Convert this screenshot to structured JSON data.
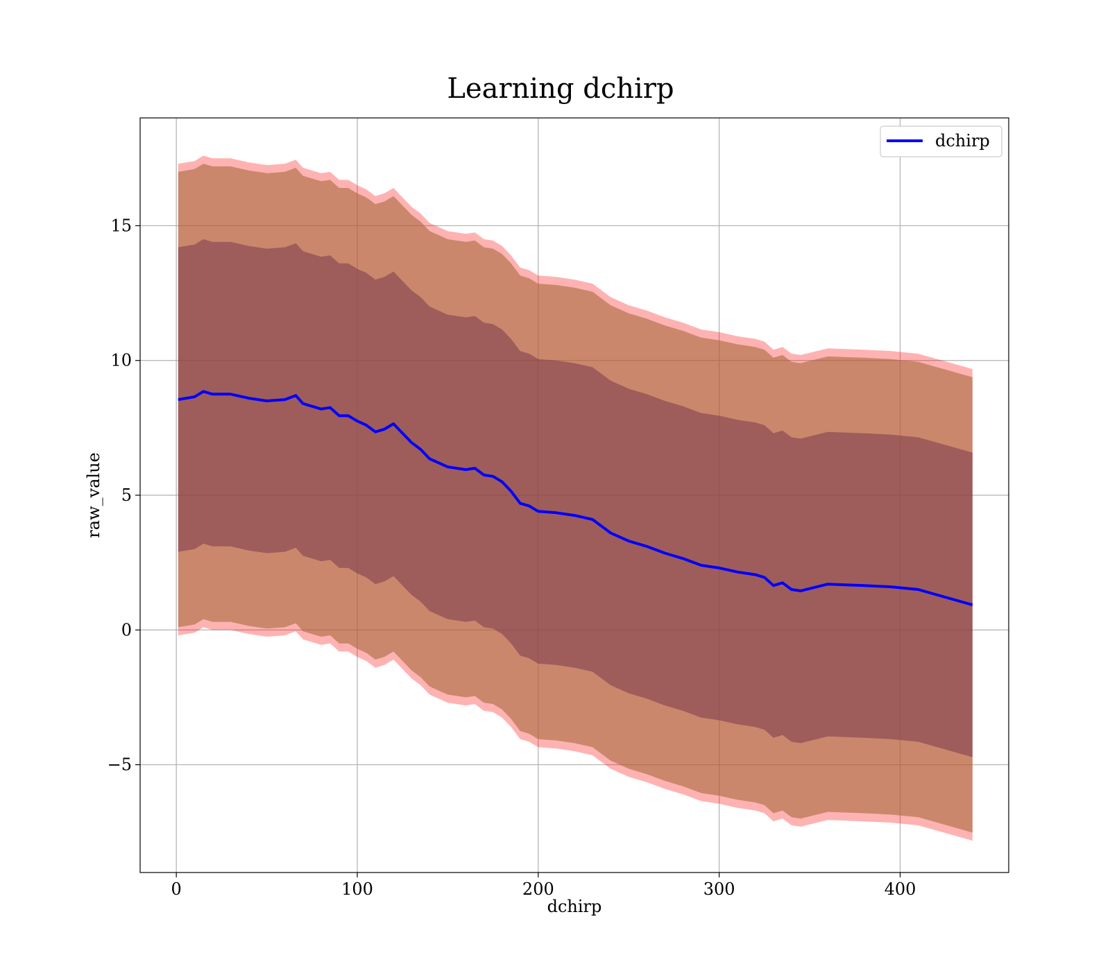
{
  "chart_data": {
    "type": "line",
    "title": "Learning dchirp",
    "xlabel": "dchirp",
    "ylabel": "raw_value",
    "xlim": [
      -20,
      460
    ],
    "ylim": [
      -9,
      19
    ],
    "xticks": [
      0,
      100,
      200,
      300,
      400
    ],
    "xtick_labels": [
      "0",
      "100",
      "200",
      "300",
      "400"
    ],
    "yticks": [
      -5,
      0,
      5,
      10,
      15
    ],
    "ytick_labels": [
      "−5",
      "0",
      "5",
      "10",
      "15"
    ],
    "grid": true,
    "legend": {
      "position": "top-right",
      "entries": [
        "dchirp"
      ]
    },
    "colors": {
      "line": "#0000ff",
      "outer_band": "#ff0000",
      "middle_band": "#a86a3e",
      "inner_band": "#7a3a4e"
    },
    "x": [
      1,
      10,
      15,
      20,
      30,
      40,
      50,
      60,
      66,
      70,
      80,
      85,
      90,
      95,
      100,
      105,
      110,
      115,
      120,
      125,
      130,
      135,
      140,
      150,
      160,
      165,
      170,
      175,
      180,
      185,
      190,
      195,
      200,
      210,
      220,
      230,
      240,
      250,
      260,
      270,
      280,
      290,
      300,
      310,
      320,
      325,
      330,
      335,
      340,
      345,
      360,
      380,
      395,
      410,
      440
    ],
    "series": [
      {
        "name": "dchirp",
        "values": [
          8.55,
          8.65,
          8.85,
          8.75,
          8.75,
          8.6,
          8.5,
          8.55,
          8.7,
          8.4,
          8.2,
          8.25,
          7.95,
          7.95,
          7.75,
          7.6,
          7.35,
          7.45,
          7.65,
          7.3,
          6.95,
          6.7,
          6.35,
          6.05,
          5.95,
          6.0,
          5.75,
          5.7,
          5.5,
          5.15,
          4.7,
          4.6,
          4.4,
          4.35,
          4.25,
          4.1,
          3.6,
          3.3,
          3.1,
          2.85,
          2.65,
          2.4,
          2.3,
          2.15,
          2.05,
          1.95,
          1.65,
          1.75,
          1.5,
          1.45,
          1.7,
          1.65,
          1.6,
          1.5,
          0.93
        ]
      }
    ],
    "bands": {
      "outer_offset": 8.75,
      "middle_offset": 8.45,
      "inner_offset": 5.65
    }
  }
}
